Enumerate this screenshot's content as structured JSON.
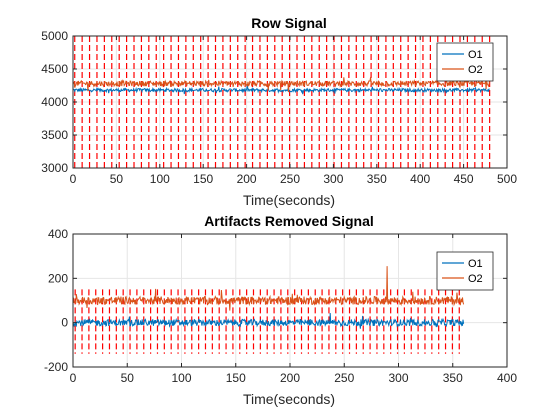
{
  "chart_data": [
    {
      "type": "line",
      "title": "Row Signal",
      "xlabel": "Time(seconds)",
      "ylabel": "",
      "xlim": [
        0,
        500
      ],
      "ylim": [
        3000,
        5000
      ],
      "xticks": [
        0,
        50,
        100,
        150,
        200,
        250,
        300,
        350,
        400,
        450,
        500
      ],
      "yticks": [
        3000,
        3500,
        4000,
        4500,
        5000
      ],
      "grid": true,
      "legend": "top-right",
      "x_end": 480,
      "series": [
        {
          "name": "O1",
          "color": "#0072BD",
          "mean": 4180,
          "noise": 25
        },
        {
          "name": "O2",
          "color": "#D95319",
          "mean": 4280,
          "noise": 40
        }
      ],
      "markers": {
        "color": "#FF0000",
        "style": "dashed",
        "count": 57,
        "from": 3000,
        "to": 5000,
        "x_start": 2,
        "x_end": 480
      }
    },
    {
      "type": "line",
      "title": "Artifacts Removed Signal",
      "xlabel": "Time(seconds)",
      "ylabel": "",
      "xlim": [
        0,
        400
      ],
      "ylim": [
        -200,
        400
      ],
      "xticks": [
        0,
        50,
        100,
        150,
        200,
        250,
        300,
        350,
        400
      ],
      "yticks": [
        -200,
        0,
        200,
        400
      ],
      "grid": true,
      "legend": "top-right",
      "x_end": 360,
      "series": [
        {
          "name": "O1",
          "color": "#0072BD",
          "mean": 0,
          "noise": 15
        },
        {
          "name": "O2",
          "color": "#D95319",
          "mean": 100,
          "noise": 18
        },
        {
          "name": "spike",
          "color": "#D95319",
          "x": [
            289,
            289.5,
            290
          ],
          "values": [
            110,
            255,
            105
          ]
        }
      ],
      "markers": {
        "color": "#FF0000",
        "style": "dashed",
        "count": 57,
        "from": -140,
        "to": 150,
        "x_start": 2,
        "x_end": 356
      }
    }
  ]
}
